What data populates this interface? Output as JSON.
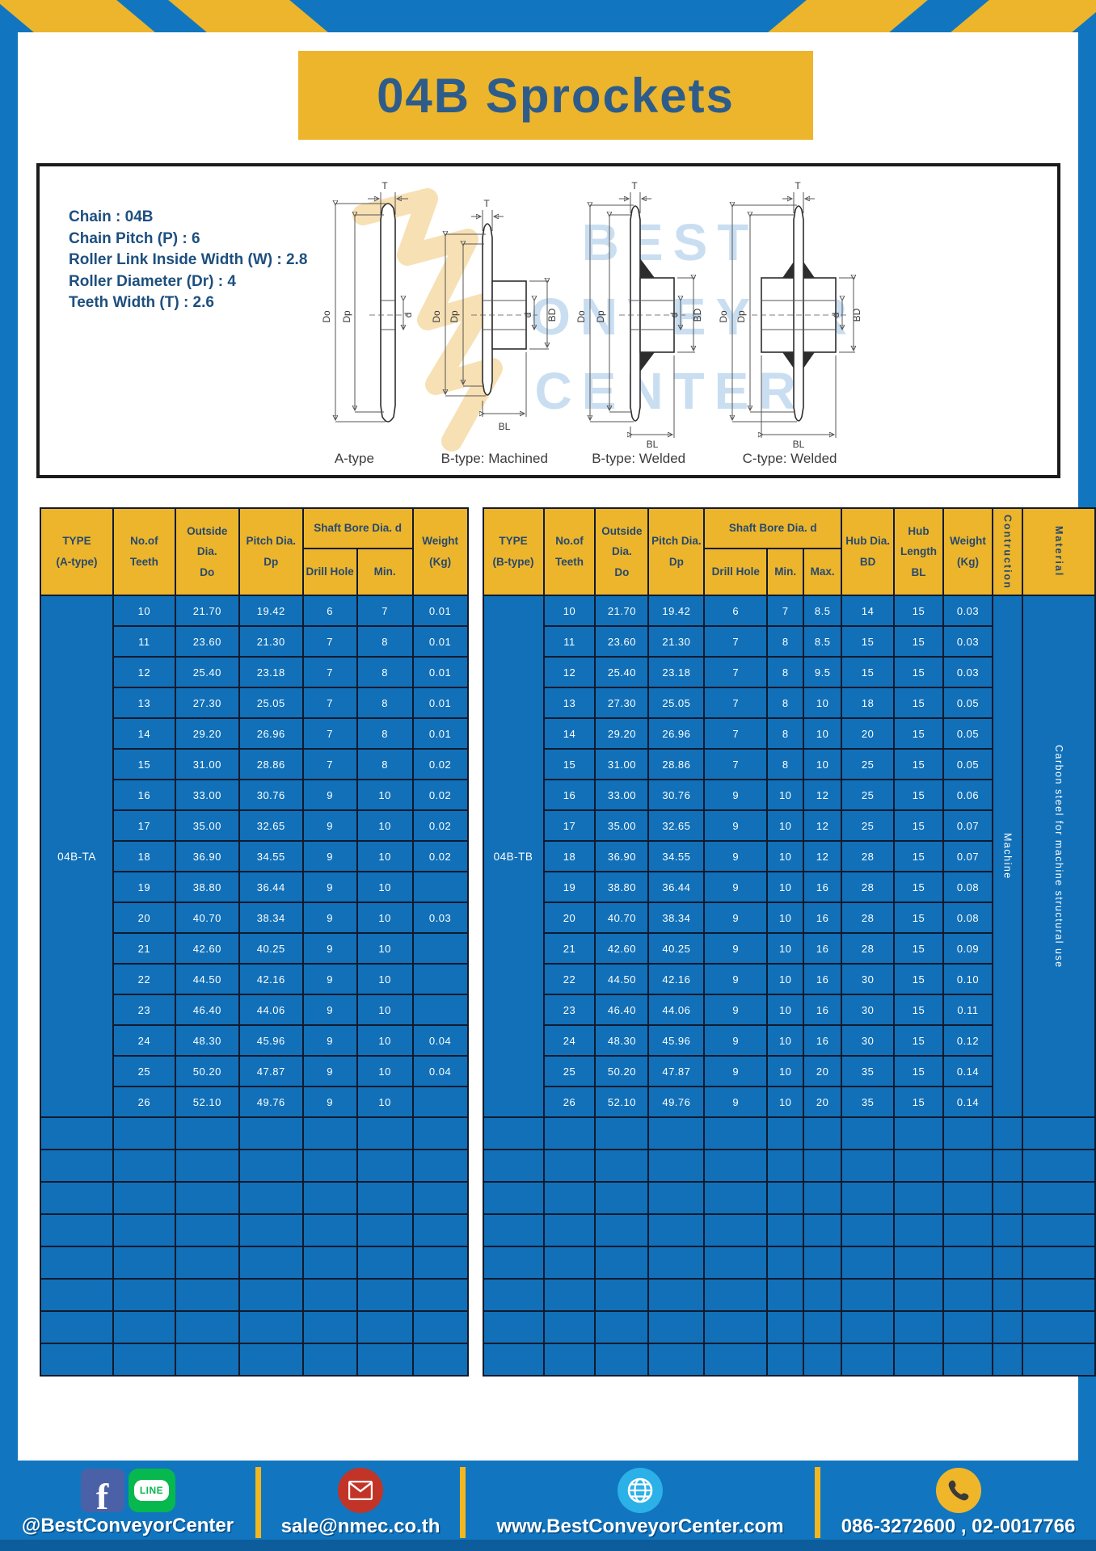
{
  "title": "04B Sprockets",
  "specs": {
    "lines": [
      "Chain  : 04B",
      "Chain Pitch (P)  :  6",
      "Roller Link Inside Width (W)  :  2.8",
      "Roller Diameter (Dr)  : 4",
      "Teeth Width (T)  :  2.6"
    ]
  },
  "watermark": {
    "lines": [
      "BEST",
      "CONVEYOR",
      "CENTER"
    ]
  },
  "dims": {
    "t": "T",
    "do": "Do",
    "dp": "Dp",
    "d": "d",
    "bd": "BD",
    "bl": "BL"
  },
  "diagrams": {
    "labels": [
      "A-type",
      "B-type: Machined",
      "B-type: Welded",
      "C-type: Welded"
    ]
  },
  "table_a": {
    "header": {
      "type": "TYPE\n(A-type)",
      "teeth": "No.of\nTeeth",
      "outside": "Outside\nDia.\nDo",
      "pitch": "Pitch Dia.\nDp",
      "shaft_bore": "Shaft Bore Dia. d",
      "drill_hole": "Drill Hole",
      "min": "Min.",
      "weight": "Weight\n(Kg)"
    },
    "type_label": "04B-TA",
    "rows": [
      [
        "10",
        "21.70",
        "19.42",
        "6",
        "7",
        "0.01"
      ],
      [
        "11",
        "23.60",
        "21.30",
        "7",
        "8",
        "0.01"
      ],
      [
        "12",
        "25.40",
        "23.18",
        "7",
        "8",
        "0.01"
      ],
      [
        "13",
        "27.30",
        "25.05",
        "7",
        "8",
        "0.01"
      ],
      [
        "14",
        "29.20",
        "26.96",
        "7",
        "8",
        "0.01"
      ],
      [
        "15",
        "31.00",
        "28.86",
        "7",
        "8",
        "0.02"
      ],
      [
        "16",
        "33.00",
        "30.76",
        "9",
        "10",
        "0.02"
      ],
      [
        "17",
        "35.00",
        "32.65",
        "9",
        "10",
        "0.02"
      ],
      [
        "18",
        "36.90",
        "34.55",
        "9",
        "10",
        "0.02"
      ],
      [
        "19",
        "38.80",
        "36.44",
        "9",
        "10",
        ""
      ],
      [
        "20",
        "40.70",
        "38.34",
        "9",
        "10",
        "0.03"
      ],
      [
        "21",
        "42.60",
        "40.25",
        "9",
        "10",
        ""
      ],
      [
        "22",
        "44.50",
        "42.16",
        "9",
        "10",
        ""
      ],
      [
        "23",
        "46.40",
        "44.06",
        "9",
        "10",
        ""
      ],
      [
        "24",
        "48.30",
        "45.96",
        "9",
        "10",
        "0.04"
      ],
      [
        "25",
        "50.20",
        "47.87",
        "9",
        "10",
        "0.04"
      ],
      [
        "26",
        "52.10",
        "49.76",
        "9",
        "10",
        ""
      ]
    ],
    "empty_rows": 8,
    "empty_cols": 7
  },
  "table_b": {
    "header": {
      "type": "TYPE\n(B-type)",
      "teeth": "No.of\nTeeth",
      "outside": "Outside\nDia.\nDo",
      "pitch": "Pitch Dia.\nDp",
      "shaft_bore": "Shaft Bore Dia. d",
      "drill_hole": "Drill Hole",
      "min": "Min.",
      "max": "Max.",
      "hub_dia": "Hub Dia.\nBD",
      "hub_length": "Hub\nLength\nBL",
      "weight": "Weight\n(Kg)",
      "construction": "Contruction",
      "material": "Material"
    },
    "type_label": "04B-TB",
    "construction_value": "Machine",
    "material_value": "Carbon steel for machine structural use",
    "rows": [
      [
        "10",
        "21.70",
        "19.42",
        "6",
        "7",
        "8.5",
        "14",
        "15",
        "0.03"
      ],
      [
        "11",
        "23.60",
        "21.30",
        "7",
        "8",
        "8.5",
        "15",
        "15",
        "0.03"
      ],
      [
        "12",
        "25.40",
        "23.18",
        "7",
        "8",
        "9.5",
        "15",
        "15",
        "0.03"
      ],
      [
        "13",
        "27.30",
        "25.05",
        "7",
        "8",
        "10",
        "18",
        "15",
        "0.05"
      ],
      [
        "14",
        "29.20",
        "26.96",
        "7",
        "8",
        "10",
        "20",
        "15",
        "0.05"
      ],
      [
        "15",
        "31.00",
        "28.86",
        "7",
        "8",
        "10",
        "25",
        "15",
        "0.05"
      ],
      [
        "16",
        "33.00",
        "30.76",
        "9",
        "10",
        "12",
        "25",
        "15",
        "0.06"
      ],
      [
        "17",
        "35.00",
        "32.65",
        "9",
        "10",
        "12",
        "25",
        "15",
        "0.07"
      ],
      [
        "18",
        "36.90",
        "34.55",
        "9",
        "10",
        "12",
        "28",
        "15",
        "0.07"
      ],
      [
        "19",
        "38.80",
        "36.44",
        "9",
        "10",
        "16",
        "28",
        "15",
        "0.08"
      ],
      [
        "20",
        "40.70",
        "38.34",
        "9",
        "10",
        "16",
        "28",
        "15",
        "0.08"
      ],
      [
        "21",
        "42.60",
        "40.25",
        "9",
        "10",
        "16",
        "28",
        "15",
        "0.09"
      ],
      [
        "22",
        "44.50",
        "42.16",
        "9",
        "10",
        "16",
        "30",
        "15",
        "0.10"
      ],
      [
        "23",
        "46.40",
        "44.06",
        "9",
        "10",
        "16",
        "30",
        "15",
        "0.11"
      ],
      [
        "24",
        "48.30",
        "45.96",
        "9",
        "10",
        "16",
        "30",
        "15",
        "0.12"
      ],
      [
        "25",
        "50.20",
        "47.87",
        "9",
        "10",
        "20",
        "35",
        "15",
        "0.14"
      ],
      [
        "26",
        "52.10",
        "49.76",
        "9",
        "10",
        "20",
        "35",
        "15",
        "0.14"
      ]
    ],
    "empty_rows": 8,
    "empty_cols": 12
  },
  "footer": {
    "facebook_letter": "f",
    "line_text": "LINE",
    "social_label": "@BestConveyorCenter",
    "email": "sale@nmec.co.th",
    "website": "www.BestConveyorCenter.com",
    "phones": "086-3272600 , 02-0017766"
  },
  "colors": {
    "frame_blue": "#1176bf",
    "cell_blue": "#1170b8",
    "accent_yellow": "#ecb52c",
    "border_navy": "#101a2e",
    "title_navy": "#2e5c8a"
  }
}
